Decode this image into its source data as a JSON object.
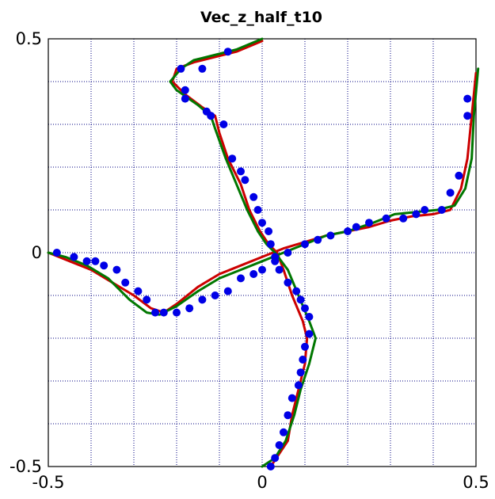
{
  "chart_data": {
    "type": "line",
    "title": "Vec_z_half_t10",
    "xlabel": "",
    "ylabel": "",
    "xlim": [
      -0.5,
      0.5
    ],
    "ylim": [
      -0.5,
      0.5
    ],
    "xticks": [
      "-0.5",
      "0",
      "0.5"
    ],
    "yticks": [
      "0.5",
      "0",
      "-0.5"
    ],
    "grid": true,
    "legend": false,
    "colors": {
      "red": "#cc0000",
      "green": "#007700",
      "points": "#0000e6"
    },
    "series": [
      {
        "kind": "line",
        "color": "#cc0000",
        "paths": [
          [
            [
              0.0,
              0.495
            ],
            [
              -0.06,
              0.47
            ],
            [
              -0.16,
              0.445
            ],
            [
              -0.2,
              0.43
            ],
            [
              -0.21,
              0.4
            ],
            [
              -0.18,
              0.37
            ],
            [
              -0.14,
              0.34
            ],
            [
              -0.11,
              0.32
            ],
            [
              -0.1,
              0.28
            ],
            [
              -0.08,
              0.22
            ],
            [
              -0.05,
              0.16
            ],
            [
              -0.03,
              0.1
            ],
            [
              -0.005,
              0.05
            ],
            [
              0.015,
              0.02
            ],
            [
              0.035,
              0.0
            ],
            [
              0.05,
              -0.04
            ],
            [
              0.07,
              -0.1
            ],
            [
              0.095,
              -0.16
            ],
            [
              0.105,
              -0.2
            ],
            [
              0.1,
              -0.26
            ],
            [
              0.085,
              -0.32
            ],
            [
              0.07,
              -0.38
            ],
            [
              0.06,
              -0.44
            ],
            [
              0.04,
              -0.47
            ],
            [
              0.02,
              -0.5
            ]
          ],
          [
            [
              0.5,
              0.42
            ],
            [
              0.49,
              0.32
            ],
            [
              0.48,
              0.22
            ],
            [
              0.465,
              0.15
            ],
            [
              0.44,
              0.1
            ],
            [
              0.4,
              0.09
            ],
            [
              0.35,
              0.085
            ],
            [
              0.3,
              0.075
            ],
            [
              0.25,
              0.06
            ],
            [
              0.2,
              0.05
            ],
            [
              0.15,
              0.04
            ],
            [
              0.1,
              0.025
            ],
            [
              0.05,
              0.01
            ],
            [
              0.0,
              -0.01
            ],
            [
              -0.05,
              -0.03
            ],
            [
              -0.1,
              -0.05
            ],
            [
              -0.15,
              -0.08
            ],
            [
              -0.2,
              -0.12
            ],
            [
              -0.23,
              -0.14
            ],
            [
              -0.26,
              -0.13
            ],
            [
              -0.3,
              -0.1
            ],
            [
              -0.35,
              -0.07
            ],
            [
              -0.4,
              -0.04
            ],
            [
              -0.45,
              -0.02
            ],
            [
              -0.5,
              0.0
            ]
          ]
        ]
      },
      {
        "kind": "line",
        "color": "#007700",
        "paths": [
          [
            [
              0.0,
              0.5
            ],
            [
              -0.06,
              0.475
            ],
            [
              -0.16,
              0.45
            ],
            [
              -0.19,
              0.43
            ],
            [
              -0.215,
              0.4
            ],
            [
              -0.2,
              0.38
            ],
            [
              -0.15,
              0.345
            ],
            [
              -0.12,
              0.32
            ],
            [
              -0.11,
              0.29
            ],
            [
              -0.085,
              0.22
            ],
            [
              -0.06,
              0.16
            ],
            [
              -0.035,
              0.1
            ],
            [
              -0.01,
              0.05
            ],
            [
              0.01,
              0.02
            ],
            [
              0.03,
              0.0
            ],
            [
              0.06,
              -0.04
            ],
            [
              0.085,
              -0.1
            ],
            [
              0.11,
              -0.16
            ],
            [
              0.125,
              -0.2
            ],
            [
              0.11,
              -0.26
            ],
            [
              0.09,
              -0.32
            ],
            [
              0.075,
              -0.38
            ],
            [
              0.055,
              -0.44
            ],
            [
              0.03,
              -0.48
            ],
            [
              0.0,
              -0.5
            ]
          ],
          [
            [
              0.505,
              0.43
            ],
            [
              0.495,
              0.32
            ],
            [
              0.49,
              0.22
            ],
            [
              0.475,
              0.15
            ],
            [
              0.45,
              0.11
            ],
            [
              0.41,
              0.1
            ],
            [
              0.36,
              0.095
            ],
            [
              0.31,
              0.09
            ],
            [
              0.26,
              0.07
            ],
            [
              0.2,
              0.05
            ],
            [
              0.15,
              0.04
            ],
            [
              0.1,
              0.02
            ],
            [
              0.05,
              0.0
            ],
            [
              0.0,
              -0.02
            ],
            [
              -0.05,
              -0.04
            ],
            [
              -0.1,
              -0.06
            ],
            [
              -0.15,
              -0.09
            ],
            [
              -0.2,
              -0.125
            ],
            [
              -0.24,
              -0.145
            ],
            [
              -0.27,
              -0.14
            ],
            [
              -0.31,
              -0.11
            ],
            [
              -0.36,
              -0.06
            ],
            [
              -0.41,
              -0.03
            ],
            [
              -0.46,
              -0.01
            ],
            [
              -0.5,
              0.0
            ]
          ]
        ]
      },
      {
        "kind": "scatter",
        "color": "#0000e6",
        "points": [
          [
            -0.08,
            0.47
          ],
          [
            -0.19,
            0.43
          ],
          [
            -0.14,
            0.43
          ],
          [
            -0.18,
            0.38
          ],
          [
            -0.18,
            0.36
          ],
          [
            -0.13,
            0.33
          ],
          [
            -0.12,
            0.32
          ],
          [
            -0.09,
            0.3
          ],
          [
            -0.07,
            0.22
          ],
          [
            -0.05,
            0.19
          ],
          [
            -0.04,
            0.17
          ],
          [
            -0.02,
            0.13
          ],
          [
            -0.01,
            0.1
          ],
          [
            0.0,
            0.07
          ],
          [
            0.015,
            0.05
          ],
          [
            0.02,
            0.02
          ],
          [
            0.03,
            -0.01
          ],
          [
            0.04,
            -0.04
          ],
          [
            0.06,
            -0.07
          ],
          [
            0.08,
            -0.09
          ],
          [
            0.09,
            -0.11
          ],
          [
            0.1,
            -0.13
          ],
          [
            0.11,
            -0.15
          ],
          [
            0.11,
            -0.19
          ],
          [
            0.1,
            -0.22
          ],
          [
            0.095,
            -0.25
          ],
          [
            0.09,
            -0.28
          ],
          [
            0.085,
            -0.31
          ],
          [
            0.07,
            -0.34
          ],
          [
            0.06,
            -0.38
          ],
          [
            0.05,
            -0.42
          ],
          [
            0.04,
            -0.45
          ],
          [
            0.03,
            -0.48
          ],
          [
            0.02,
            -0.5
          ],
          [
            0.48,
            0.36
          ],
          [
            0.48,
            0.32
          ],
          [
            0.46,
            0.18
          ],
          [
            0.44,
            0.14
          ],
          [
            0.42,
            0.1
          ],
          [
            0.38,
            0.1
          ],
          [
            0.36,
            0.09
          ],
          [
            0.33,
            0.08
          ],
          [
            0.29,
            0.08
          ],
          [
            0.25,
            0.07
          ],
          [
            0.22,
            0.06
          ],
          [
            0.2,
            0.05
          ],
          [
            0.16,
            0.04
          ],
          [
            0.13,
            0.03
          ],
          [
            0.1,
            0.02
          ],
          [
            0.06,
            0.0
          ],
          [
            0.03,
            -0.02
          ],
          [
            0.0,
            -0.04
          ],
          [
            -0.02,
            -0.05
          ],
          [
            -0.05,
            -0.06
          ],
          [
            -0.08,
            -0.09
          ],
          [
            -0.11,
            -0.1
          ],
          [
            -0.14,
            -0.11
          ],
          [
            -0.17,
            -0.13
          ],
          [
            -0.2,
            -0.14
          ],
          [
            -0.23,
            -0.14
          ],
          [
            -0.25,
            -0.14
          ],
          [
            -0.27,
            -0.11
          ],
          [
            -0.29,
            -0.09
          ],
          [
            -0.32,
            -0.07
          ],
          [
            -0.34,
            -0.04
          ],
          [
            -0.37,
            -0.03
          ],
          [
            -0.39,
            -0.02
          ],
          [
            -0.41,
            -0.02
          ],
          [
            -0.44,
            -0.01
          ],
          [
            -0.48,
            0.0
          ]
        ]
      }
    ]
  }
}
